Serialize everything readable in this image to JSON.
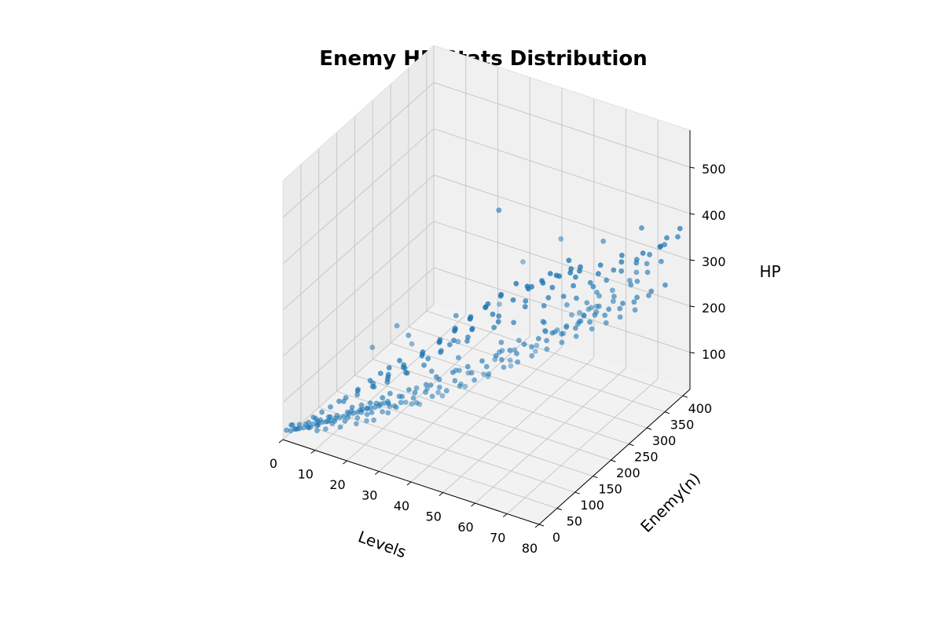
{
  "chart_data": {
    "type": "scatter",
    "title": "Enemy HP Stats Distribution",
    "xlabel": "Levels",
    "ylabel": "Enemy(n)",
    "zlabel": "HP",
    "xlim": [
      0,
      80
    ],
    "ylim": [
      0,
      420
    ],
    "zlim": [
      20,
      580
    ],
    "xticks": [
      "0",
      "10",
      "20",
      "30",
      "40",
      "50",
      "60",
      "70",
      "80"
    ],
    "yticks": [
      "0",
      "50",
      "100",
      "150",
      "200",
      "250",
      "300",
      "350",
      "400"
    ],
    "zticks": [
      "100",
      "200",
      "300",
      "400",
      "500"
    ],
    "grid": true,
    "color": "#1f77b4",
    "points": [
      [
        1,
        1,
        42
      ],
      [
        2,
        4,
        41
      ],
      [
        3,
        7,
        45
      ],
      [
        3,
        8,
        44
      ],
      [
        4,
        11,
        46
      ],
      [
        5,
        13,
        48
      ],
      [
        6,
        16,
        50
      ],
      [
        6,
        18,
        47
      ],
      [
        7,
        21,
        55
      ],
      [
        8,
        24,
        52
      ],
      [
        8,
        26,
        57
      ],
      [
        9,
        29,
        58
      ],
      [
        10,
        31,
        60
      ],
      [
        11,
        34,
        63
      ],
      [
        12,
        37,
        62
      ],
      [
        12,
        39,
        66
      ],
      [
        13,
        42,
        68
      ],
      [
        14,
        45,
        71
      ],
      [
        15,
        47,
        70
      ],
      [
        15,
        50,
        75
      ],
      [
        16,
        53,
        77
      ],
      [
        17,
        56,
        79
      ],
      [
        18,
        58,
        80
      ],
      [
        18,
        61,
        84
      ],
      [
        19,
        64,
        86
      ],
      [
        20,
        66,
        88
      ],
      [
        21,
        69,
        90
      ],
      [
        22,
        72,
        93
      ],
      [
        22,
        75,
        95
      ],
      [
        23,
        77,
        98
      ],
      [
        2,
        9,
        50
      ],
      [
        4,
        6,
        48
      ],
      [
        5,
        19,
        52
      ],
      [
        7,
        14,
        53
      ],
      [
        8,
        33,
        58
      ],
      [
        9,
        18,
        60
      ],
      [
        10,
        43,
        62
      ],
      [
        11,
        27,
        66
      ],
      [
        13,
        22,
        69
      ],
      [
        14,
        55,
        73
      ],
      [
        16,
        30,
        76
      ],
      [
        17,
        64,
        79
      ],
      [
        19,
        38,
        84
      ],
      [
        20,
        82,
        87
      ],
      [
        21,
        47,
        90
      ],
      [
        23,
        28,
        94
      ],
      [
        24,
        80,
        97
      ],
      [
        25,
        54,
        100
      ],
      [
        26,
        100,
        103
      ],
      [
        27,
        70,
        106
      ],
      [
        6,
        37,
        54
      ],
      [
        9,
        47,
        57
      ],
      [
        12,
        12,
        62
      ],
      [
        14,
        66,
        68
      ],
      [
        16,
        17,
        72
      ],
      [
        18,
        75,
        77
      ],
      [
        20,
        26,
        82
      ],
      [
        22,
        96,
        86
      ],
      [
        24,
        39,
        90
      ],
      [
        26,
        61,
        95
      ],
      [
        1,
        14,
        44
      ],
      [
        3,
        19,
        46
      ],
      [
        5,
        27,
        50
      ],
      [
        7,
        33,
        54
      ],
      [
        10,
        6,
        58
      ],
      [
        11,
        52,
        61
      ],
      [
        13,
        77,
        66
      ],
      [
        15,
        85,
        70
      ],
      [
        17,
        92,
        74
      ],
      [
        19,
        108,
        79
      ],
      [
        20,
        120,
        82
      ],
      [
        21,
        60,
        85
      ],
      [
        24,
        110,
        92
      ],
      [
        25,
        128,
        96
      ],
      [
        27,
        88,
        101
      ],
      [
        28,
        118,
        104
      ],
      [
        29,
        140,
        108
      ],
      [
        30,
        96,
        112
      ],
      [
        31,
        135,
        115
      ],
      [
        32,
        150,
        119
      ],
      [
        28,
        66,
        108
      ],
      [
        30,
        160,
        113
      ],
      [
        32,
        112,
        118
      ],
      [
        33,
        78,
        121
      ],
      [
        34,
        170,
        125
      ],
      [
        35,
        124,
        127
      ],
      [
        36,
        95,
        130
      ],
      [
        37,
        185,
        134
      ],
      [
        38,
        140,
        137
      ],
      [
        39,
        108,
        140
      ],
      [
        40,
        198,
        144
      ],
      [
        41,
        160,
        147
      ],
      [
        42,
        118,
        150
      ],
      [
        43,
        210,
        154
      ],
      [
        44,
        175,
        157
      ],
      [
        45,
        132,
        160
      ],
      [
        46,
        222,
        164
      ],
      [
        47,
        190,
        168
      ],
      [
        48,
        145,
        171
      ],
      [
        49,
        235,
        175
      ],
      [
        50,
        205,
        178
      ],
      [
        51,
        160,
        182
      ],
      [
        52,
        248,
        185
      ],
      [
        53,
        220,
        189
      ],
      [
        54,
        172,
        192
      ],
      [
        55,
        260,
        196
      ],
      [
        56,
        235,
        199
      ],
      [
        57,
        185,
        203
      ],
      [
        58,
        272,
        207
      ],
      [
        59,
        250,
        210
      ],
      [
        60,
        200,
        214
      ],
      [
        61,
        285,
        218
      ],
      [
        62,
        262,
        221
      ],
      [
        63,
        215,
        225
      ],
      [
        64,
        298,
        229
      ],
      [
        65,
        275,
        232
      ],
      [
        66,
        228,
        236
      ],
      [
        67,
        310,
        240
      ],
      [
        68,
        290,
        243
      ],
      [
        69,
        245,
        247
      ],
      [
        70,
        322,
        251
      ],
      [
        71,
        305,
        254
      ],
      [
        72,
        258,
        258
      ],
      [
        73,
        335,
        262
      ],
      [
        74,
        318,
        266
      ],
      [
        75,
        270,
        269
      ],
      [
        76,
        348,
        273
      ],
      [
        77,
        332,
        277
      ],
      [
        78,
        285,
        281
      ],
      [
        79,
        360,
        285
      ],
      [
        30,
        30,
        140
      ],
      [
        35,
        60,
        170
      ],
      [
        40,
        45,
        190
      ],
      [
        45,
        90,
        210
      ],
      [
        50,
        70,
        230
      ],
      [
        55,
        120,
        255
      ],
      [
        60,
        110,
        275
      ],
      [
        65,
        150,
        300
      ],
      [
        70,
        140,
        320
      ],
      [
        75,
        190,
        345
      ],
      [
        33,
        120,
        160
      ],
      [
        38,
        150,
        180
      ],
      [
        43,
        98,
        200
      ],
      [
        48,
        180,
        215
      ],
      [
        53,
        130,
        240
      ],
      [
        58,
        210,
        260
      ],
      [
        63,
        170,
        280
      ],
      [
        68,
        240,
        305
      ],
      [
        73,
        200,
        330
      ],
      [
        78,
        270,
        355
      ],
      [
        29,
        180,
        150
      ],
      [
        34,
        210,
        165
      ],
      [
        39,
        240,
        185
      ],
      [
        44,
        250,
        200
      ],
      [
        49,
        290,
        220
      ],
      [
        54,
        300,
        245
      ],
      [
        59,
        330,
        265
      ],
      [
        64,
        350,
        290
      ],
      [
        69,
        370,
        310
      ],
      [
        74,
        390,
        335
      ],
      [
        27,
        200,
        135
      ],
      [
        32,
        230,
        155
      ],
      [
        37,
        270,
        172
      ],
      [
        42,
        300,
        195
      ],
      [
        47,
        320,
        212
      ],
      [
        52,
        345,
        232
      ],
      [
        57,
        370,
        252
      ],
      [
        62,
        390,
        275
      ],
      [
        67,
        405,
        295
      ],
      [
        72,
        410,
        318
      ],
      [
        22,
        150,
        110
      ],
      [
        25,
        170,
        120
      ],
      [
        28,
        215,
        140
      ],
      [
        31,
        250,
        155
      ],
      [
        36,
        280,
        175
      ],
      [
        41,
        310,
        198
      ],
      [
        46,
        340,
        218
      ],
      [
        51,
        360,
        238
      ],
      [
        56,
        385,
        258
      ],
      [
        61,
        400,
        280
      ],
      [
        18,
        130,
        95
      ],
      [
        21,
        155,
        105
      ],
      [
        24,
        190,
        118
      ],
      [
        27,
        235,
        133
      ],
      [
        30,
        260,
        148
      ],
      [
        33,
        290,
        165
      ],
      [
        36,
        320,
        182
      ],
      [
        39,
        345,
        200
      ],
      [
        42,
        370,
        218
      ],
      [
        45,
        395,
        236
      ],
      [
        15,
        120,
        85
      ],
      [
        17,
        140,
        92
      ],
      [
        19,
        170,
        100
      ],
      [
        21,
        200,
        110
      ],
      [
        23,
        230,
        123
      ],
      [
        25,
        255,
        135
      ],
      [
        27,
        280,
        148
      ],
      [
        29,
        305,
        160
      ],
      [
        31,
        330,
        172
      ],
      [
        33,
        355,
        186
      ],
      [
        12,
        100,
        75
      ],
      [
        14,
        125,
        80
      ],
      [
        16,
        150,
        88
      ],
      [
        18,
        175,
        96
      ],
      [
        20,
        210,
        105
      ],
      [
        22,
        240,
        115
      ],
      [
        24,
        265,
        128
      ],
      [
        26,
        290,
        140
      ],
      [
        28,
        315,
        152
      ],
      [
        30,
        340,
        166
      ],
      [
        10,
        80,
        70
      ],
      [
        11,
        110,
        74
      ],
      [
        13,
        135,
        78
      ],
      [
        15,
        160,
        84
      ],
      [
        17,
        185,
        92
      ],
      [
        19,
        220,
        100
      ],
      [
        21,
        250,
        110
      ],
      [
        23,
        275,
        122
      ],
      [
        25,
        300,
        134
      ],
      [
        27,
        330,
        146
      ],
      [
        5,
        40,
        52
      ],
      [
        6,
        55,
        55
      ],
      [
        7,
        70,
        58
      ],
      [
        8,
        85,
        62
      ],
      [
        9,
        95,
        65
      ],
      [
        10,
        120,
        68
      ],
      [
        11,
        145,
        72
      ],
      [
        12,
        165,
        76
      ],
      [
        13,
        180,
        80
      ],
      [
        14,
        200,
        84
      ],
      [
        35,
        30,
        160
      ],
      [
        38,
        20,
        170
      ],
      [
        41,
        15,
        180
      ],
      [
        44,
        40,
        195
      ],
      [
        47,
        25,
        205
      ],
      [
        50,
        50,
        220
      ],
      [
        53,
        35,
        232
      ],
      [
        56,
        60,
        248
      ],
      [
        59,
        45,
        260
      ],
      [
        62,
        80,
        278
      ],
      [
        65,
        55,
        290
      ],
      [
        68,
        100,
        310
      ],
      [
        71,
        70,
        325
      ],
      [
        74,
        130,
        345
      ],
      [
        77,
        95,
        360
      ],
      [
        80,
        160,
        380
      ],
      [
        79,
        120,
        372
      ],
      [
        76,
        160,
        352
      ],
      [
        73,
        175,
        340
      ],
      [
        70,
        180,
        325
      ],
      [
        58,
        300,
        250
      ],
      [
        61,
        320,
        268
      ],
      [
        64,
        330,
        282
      ],
      [
        67,
        345,
        298
      ],
      [
        70,
        360,
        312
      ],
      [
        73,
        370,
        330
      ],
      [
        76,
        385,
        348
      ],
      [
        79,
        395,
        365
      ],
      [
        78,
        410,
        370
      ],
      [
        75,
        400,
        350
      ],
      [
        66,
        250,
        265
      ],
      [
        69,
        265,
        282
      ],
      [
        72,
        280,
        300
      ],
      [
        75,
        300,
        318
      ],
      [
        78,
        320,
        338
      ],
      [
        80,
        340,
        352
      ],
      [
        77,
        300,
        330
      ],
      [
        74,
        260,
        308
      ],
      [
        71,
        240,
        292
      ],
      [
        68,
        215,
        276
      ],
      [
        50,
        380,
        235
      ],
      [
        48,
        400,
        225
      ],
      [
        46,
        390,
        215
      ],
      [
        44,
        410,
        205
      ],
      [
        42,
        395,
        195
      ],
      [
        40,
        405,
        185
      ],
      [
        38,
        385,
        178
      ],
      [
        36,
        400,
        168
      ],
      [
        34,
        380,
        160
      ],
      [
        32,
        395,
        150
      ],
      [
        55,
        100,
        250
      ],
      [
        58,
        140,
        270
      ],
      [
        61,
        180,
        290
      ],
      [
        64,
        220,
        305
      ],
      [
        67,
        160,
        295
      ],
      [
        70,
        250,
        325
      ],
      [
        73,
        230,
        338
      ],
      [
        76,
        240,
        350
      ],
      [
        79,
        280,
        368
      ],
      [
        80,
        300,
        375
      ],
      [
        30,
        50,
        300
      ],
      [
        38,
        20,
        300
      ],
      [
        48,
        60,
        300
      ],
      [
        24,
        35,
        250
      ],
      [
        28,
        100,
        240
      ],
      [
        35,
        170,
        250
      ],
      [
        45,
        200,
        480
      ],
      [
        62,
        50,
        420
      ],
      [
        66,
        80,
        500
      ],
      [
        70,
        150,
        510
      ],
      [
        72,
        250,
        440
      ],
      [
        75,
        330,
        420
      ]
    ]
  }
}
